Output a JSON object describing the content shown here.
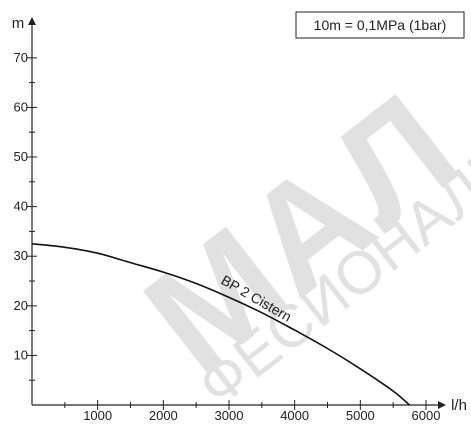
{
  "chart_data": {
    "type": "line",
    "xlabel": "l/h",
    "ylabel": "m",
    "xlim": [
      0,
      6000
    ],
    "ylim": [
      0,
      75
    ],
    "x_ticks": [
      1000,
      2000,
      3000,
      4000,
      5000,
      6000
    ],
    "y_ticks": [
      10,
      20,
      30,
      40,
      50,
      60,
      70
    ],
    "grid": false,
    "annotation": "10m = 0,1MPa (1bar)",
    "series": [
      {
        "name": "BP 2 Cistern",
        "color": "#111111",
        "x": [
          0,
          500,
          1000,
          1500,
          2000,
          2500,
          3000,
          3500,
          4000,
          4500,
          5000,
          5500,
          5750
        ],
        "y": [
          32.5,
          31.8,
          30.6,
          28.7,
          26.8,
          24.5,
          21.7,
          18.6,
          15.1,
          11.4,
          7.3,
          2.8,
          0
        ]
      }
    ],
    "watermark_text": "МАЛ ФЕСИОНАЛН"
  }
}
